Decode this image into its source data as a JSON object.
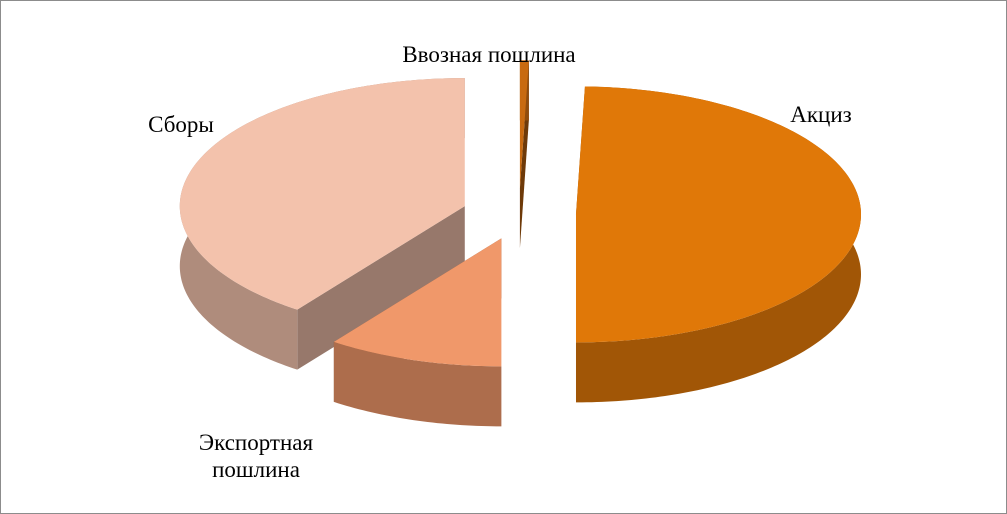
{
  "chart_data": {
    "type": "pie3d",
    "categories": [
      "Ввозная пошлина",
      "Акциз",
      "Экспортная пошлина",
      "Сборы"
    ],
    "values": [
      0.5,
      49.5,
      10,
      40
    ],
    "colors": [
      "#c86a10",
      "#e07808",
      "#f0986a",
      "#f3c2ac"
    ]
  }
}
